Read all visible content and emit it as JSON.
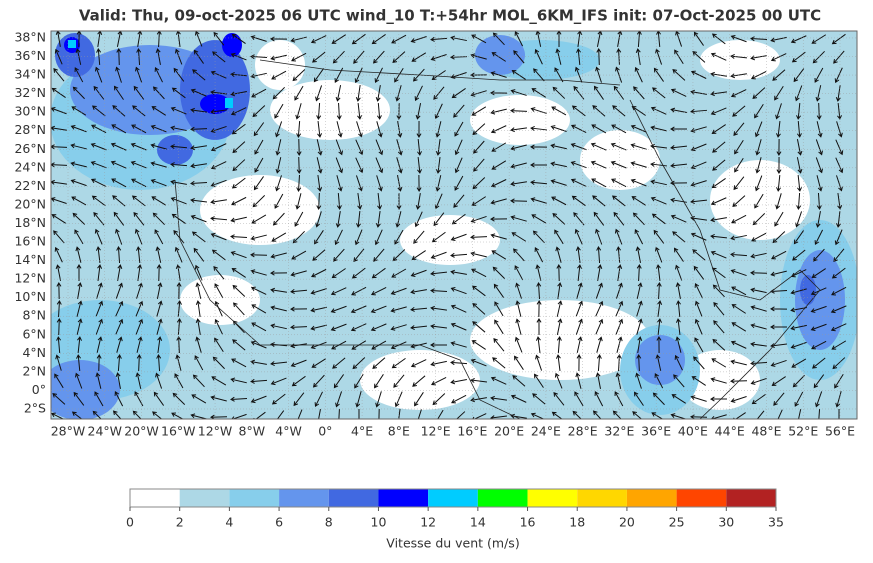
{
  "header": {
    "title": "Valid: Thu, 09-oct-2025   06 UTC   wind_10   T:+54hr   MOL_6KM_IFS   init: 07-Oct-2025    00 UTC"
  },
  "map": {
    "lon_range": [
      -29.85,
      57.85
    ],
    "lat_range": [
      -3.08,
      38.75
    ],
    "lat_ticks": [
      {
        "value": 38,
        "label": "38°N"
      },
      {
        "value": 36,
        "label": "36°N"
      },
      {
        "value": 34,
        "label": "34°N"
      },
      {
        "value": 32,
        "label": "32°N"
      },
      {
        "value": 30,
        "label": "30°N"
      },
      {
        "value": 28,
        "label": "28°N"
      },
      {
        "value": 26,
        "label": "26°N"
      },
      {
        "value": 24,
        "label": "24°N"
      },
      {
        "value": 22,
        "label": "22°N"
      },
      {
        "value": 20,
        "label": "20°N"
      },
      {
        "value": 18,
        "label": "18°N"
      },
      {
        "value": 16,
        "label": "16°N"
      },
      {
        "value": 14,
        "label": "14°N"
      },
      {
        "value": 12,
        "label": "12°N"
      },
      {
        "value": 10,
        "label": "10°N"
      },
      {
        "value": 8,
        "label": "8°N"
      },
      {
        "value": 6,
        "label": "6°N"
      },
      {
        "value": 4,
        "label": "4°N"
      },
      {
        "value": 2,
        "label": "2°N"
      },
      {
        "value": 0,
        "label": "0°"
      },
      {
        "value": -2,
        "label": "2°S"
      }
    ],
    "lon_ticks": [
      {
        "value": -28,
        "label": "28°W"
      },
      {
        "value": -24,
        "label": "24°W"
      },
      {
        "value": -20,
        "label": "20°W"
      },
      {
        "value": -16,
        "label": "16°W"
      },
      {
        "value": -12,
        "label": "12°W"
      },
      {
        "value": -8,
        "label": "8°W"
      },
      {
        "value": -4,
        "label": "4°W"
      },
      {
        "value": 0,
        "label": "0°"
      },
      {
        "value": 4,
        "label": "4°E"
      },
      {
        "value": 8,
        "label": "8°E"
      },
      {
        "value": 12,
        "label": "12°E"
      },
      {
        "value": 16,
        "label": "16°E"
      },
      {
        "value": 20,
        "label": "20°E"
      },
      {
        "value": 24,
        "label": "24°E"
      },
      {
        "value": 28,
        "label": "28°E"
      },
      {
        "value": 32,
        "label": "32°E"
      },
      {
        "value": 36,
        "label": "36°E"
      },
      {
        "value": 40,
        "label": "40°E"
      },
      {
        "value": 44,
        "label": "44°E"
      },
      {
        "value": 48,
        "label": "48°E"
      },
      {
        "value": 52,
        "label": "52°E"
      },
      {
        "value": 56,
        "label": "56°E"
      }
    ]
  },
  "colorbar": {
    "label": "Vitesse du vent (m/s)",
    "bounds": [
      0,
      2,
      4,
      6,
      8,
      10,
      12,
      14,
      16,
      18,
      20,
      25,
      30,
      35
    ],
    "colors": [
      "#ffffff",
      "#add8e6",
      "#87ceeb",
      "#6495ed",
      "#4169e1",
      "#0000ff",
      "#00ccff",
      "#00ff00",
      "#ffff00",
      "#ffd700",
      "#ffa500",
      "#ff4500",
      "#b22222"
    ]
  }
}
